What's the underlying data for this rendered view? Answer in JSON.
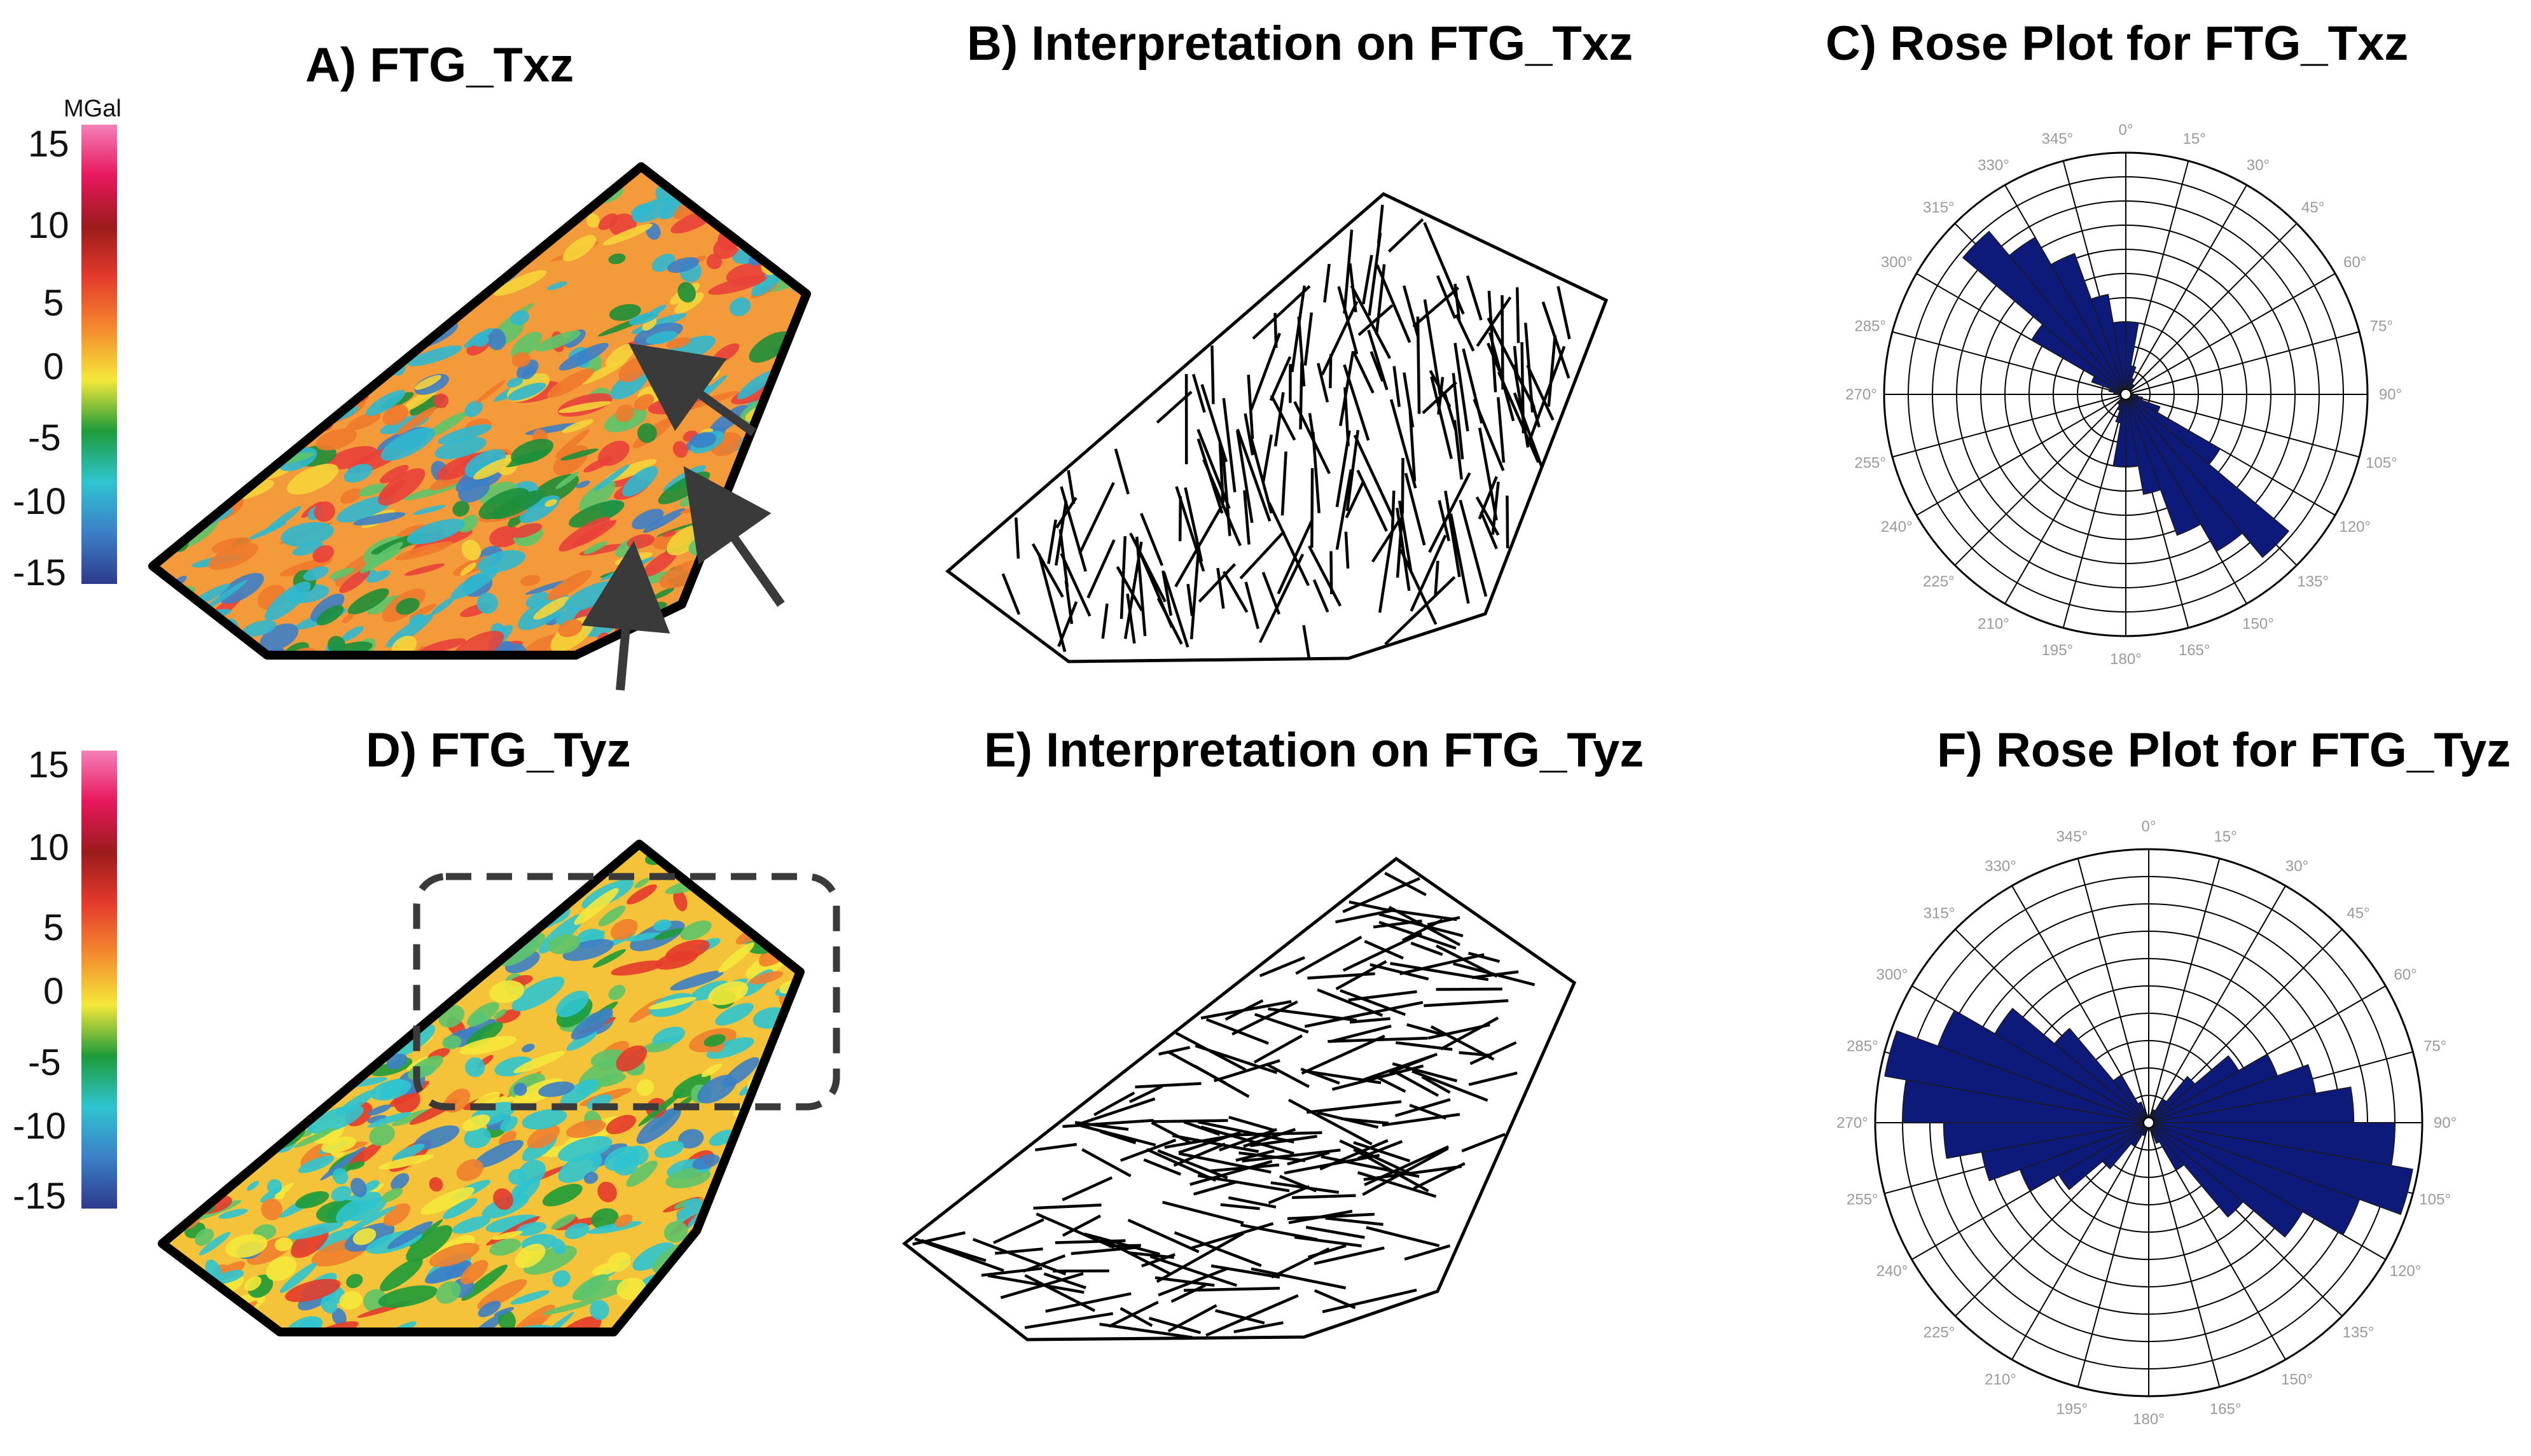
{
  "titles": {
    "a": "A) FTG_Txz",
    "b": "B) Interpretation on FTG_Txz",
    "c": "C) Rose Plot for FTG_Txz",
    "d": "D) FTG_Tyz",
    "e": "E) Interpretation on FTG_Tyz",
    "f": "F) Rose Plot for FTG_Tyz"
  },
  "colorbar": {
    "unit": "MGal",
    "ticks": [
      "15",
      "10",
      "5",
      "0",
      "-5",
      "-10",
      "-15"
    ],
    "colors": [
      "#f47fb8",
      "#e8175d",
      "#9b1b1b",
      "#e43b2c",
      "#f48a2e",
      "#f5e83a",
      "#1e9b3a",
      "#2fc4d0",
      "#3c7fc7",
      "#2d3a8c"
    ]
  },
  "map_palette": {
    "outline": "#000000",
    "arrow": "#3a3a3a",
    "highlight_box": "#3a3a3a"
  },
  "rose": {
    "angle_labels": [
      "0°",
      "15°",
      "30°",
      "45°",
      "60°",
      "75°",
      "90°",
      "105°",
      "120°",
      "135°",
      "150°",
      "165°",
      "180°",
      "195°",
      "210°",
      "225°",
      "240°",
      "255°",
      "270°",
      "285°",
      "300°",
      "315°",
      "330°",
      "345°"
    ],
    "petal_color": "#0d1a7a"
  },
  "chart_data": [
    {
      "type": "rose",
      "title": "C) Rose Plot for FTG_Txz",
      "bin_width_deg": 10,
      "bins_start_deg": [
        0,
        10,
        20,
        30,
        40,
        50,
        60,
        70,
        80,
        90,
        100,
        110,
        120,
        130,
        140,
        150,
        160,
        170,
        180,
        190,
        200,
        210,
        220,
        230,
        240,
        250,
        260,
        270,
        280,
        290,
        300,
        310,
        320,
        330,
        340,
        350
      ],
      "relative_length": [
        0.3,
        0.12,
        0.07,
        0.05,
        0.03,
        0.02,
        0.01,
        0.02,
        0.03,
        0.05,
        0.07,
        0.15,
        0.45,
        0.88,
        0.75,
        0.62,
        0.42,
        0.3,
        0.3,
        0.12,
        0.07,
        0.05,
        0.03,
        0.02,
        0.01,
        0.02,
        0.03,
        0.05,
        0.07,
        0.15,
        0.45,
        0.88,
        0.75,
        0.62,
        0.42,
        0.3
      ]
    },
    {
      "type": "rose",
      "title": "F) Rose Plot for FTG_Tyz",
      "bin_width_deg": 10,
      "bins_start_deg": [
        0,
        10,
        20,
        30,
        40,
        50,
        60,
        70,
        80,
        90,
        100,
        110,
        120,
        130,
        140,
        150,
        160,
        170,
        180,
        190,
        200,
        210,
        220,
        230,
        240,
        250,
        260,
        270,
        280,
        290,
        300,
        310,
        320,
        330,
        340,
        350
      ],
      "relative_length": [
        0.02,
        0.03,
        0.05,
        0.1,
        0.22,
        0.38,
        0.5,
        0.62,
        0.75,
        0.9,
        0.98,
        0.82,
        0.65,
        0.45,
        0.2,
        0.08,
        0.03,
        0.02,
        0.02,
        0.03,
        0.05,
        0.1,
        0.22,
        0.38,
        0.5,
        0.62,
        0.75,
        0.9,
        0.98,
        0.82,
        0.65,
        0.45,
        0.2,
        0.08,
        0.03,
        0.02
      ]
    }
  ]
}
